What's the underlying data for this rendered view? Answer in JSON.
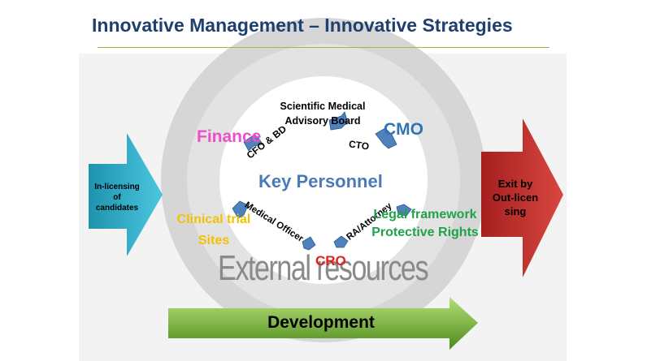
{
  "title": "Innovative Management – Innovative Strategies",
  "left_arrow": {
    "label_lines": [
      "In-licensing",
      "of",
      "candidates"
    ]
  },
  "right_arrow": {
    "label_lines": [
      "Exit by",
      "Out-licen",
      "sing"
    ]
  },
  "center": {
    "key_personnel": "Key Personnel",
    "scientific_board_lines": [
      "Scientific Medical",
      "Advisory Board"
    ],
    "cto": "CTO",
    "cfo_bd": "CFO & BD",
    "medical_officer": "Medical Officer",
    "ra_attorney": "RA/Attorney"
  },
  "outer": {
    "finance": "Finance",
    "cmo": "CMO",
    "clinical_trial_sites_lines": [
      "Clinical trial",
      "Sites"
    ],
    "legal_framework_lines": [
      "Legal framework",
      "Protective Rights"
    ],
    "cro": "CRO",
    "external_resources": "External resources"
  },
  "bottom_arrow": {
    "label": "Development"
  },
  "colors": {
    "title": "#1f3f6e",
    "rule": "#8fbf4f",
    "ring_outer": "#d4d4d4",
    "cyan_arrow": "#2aa8c4",
    "red_arrow": "#c8312f",
    "green_arrow": "#6aa22b",
    "finance": "#ec4fc8",
    "cmo": "#2e74b5",
    "key_personnel": "#4a7ab8",
    "clinical": "#f2c200",
    "legal": "#1fa348",
    "cro": "#e01f1f",
    "connector": "#4f81bd"
  }
}
